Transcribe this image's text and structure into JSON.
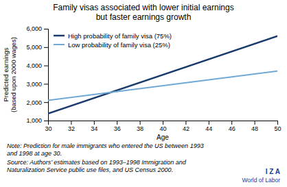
{
  "chart_data": {
    "type": "line",
    "title": "Family visas associated with lower initial earnings\nbut faster earnings growth",
    "x_label": "Age",
    "y_label": "Predicted earnings\n(based upon 2000 wages)",
    "x": [
      30,
      50
    ],
    "series": [
      {
        "name": "High probability of family visa (75%)",
        "color": "#1a3a6b",
        "values": [
          1380,
          5600
        ]
      },
      {
        "name": "Low probability of family visa (25%)",
        "color": "#6fa8d4",
        "values": [
          2100,
          3700
        ]
      }
    ],
    "xlim": [
      30,
      50
    ],
    "ylim": [
      1000,
      6000
    ],
    "xticks": [
      30,
      32,
      34,
      36,
      38,
      40,
      42,
      44,
      46,
      48,
      50
    ],
    "yticks": [
      {
        "value": 1000,
        "label": "1,000"
      },
      {
        "value": 2000,
        "label": "2,000"
      },
      {
        "value": 3000,
        "label": "3,000"
      },
      {
        "value": 4000,
        "label": "4,000"
      },
      {
        "value": 5000,
        "label": "5,000"
      },
      {
        "value": 6000,
        "label": "6,000"
      }
    ],
    "grid": false,
    "legend": "upper left",
    "annotations": [
      "Note: Prediction for male immigrants who entered the US between 1993\nand 1998 at age 30.",
      "Source: Authors’ estimates based on 1993–1998 Immigration and\nNaturalization Service public use files, and US Census 2000.",
      "I Z A",
      "World of Labor"
    ]
  }
}
